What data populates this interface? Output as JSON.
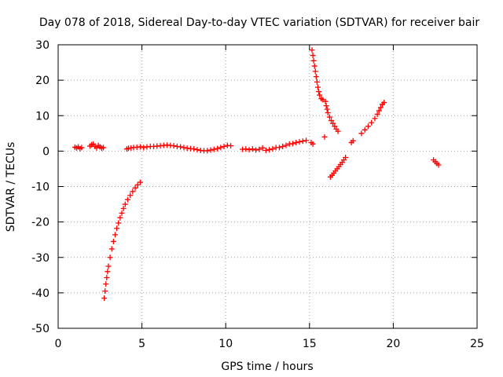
{
  "chart_data": {
    "type": "scatter",
    "title": "Day 078 of 2018, Sidereal Day-to-day VTEC variation (SDTVAR) for receiver bair",
    "xlabel": "GPS time / hours",
    "ylabel": "SDTVAR / TECUs",
    "xlim": [
      0,
      25
    ],
    "ylim": [
      -50,
      30
    ],
    "x_ticks": [
      0,
      5,
      10,
      15,
      20,
      25
    ],
    "y_ticks": [
      -50,
      -40,
      -30,
      -20,
      -10,
      0,
      10,
      20,
      30
    ],
    "grid": true,
    "marker": "+",
    "color": "#ff0000",
    "series": [
      {
        "points": [
          [
            1.0,
            1.1
          ],
          [
            1.1,
            0.9
          ],
          [
            1.2,
            1.2
          ],
          [
            1.3,
            0.7
          ],
          [
            1.4,
            1.0
          ],
          [
            1.9,
            1.4
          ],
          [
            2.0,
            1.8
          ],
          [
            2.1,
            2.0
          ],
          [
            2.2,
            1.3
          ],
          [
            2.3,
            0.9
          ],
          [
            2.4,
            1.6
          ],
          [
            2.5,
            1.2
          ],
          [
            2.6,
            0.8
          ],
          [
            2.7,
            1.0
          ],
          [
            4.1,
            0.6
          ],
          [
            4.2,
            0.8
          ],
          [
            4.35,
            0.9
          ],
          [
            4.5,
            1.0
          ],
          [
            4.7,
            1.1
          ],
          [
            4.9,
            1.2
          ],
          [
            5.1,
            1.0
          ],
          [
            5.3,
            1.2
          ],
          [
            5.5,
            1.3
          ],
          [
            5.7,
            1.3
          ],
          [
            5.9,
            1.4
          ],
          [
            6.1,
            1.5
          ],
          [
            6.3,
            1.6
          ],
          [
            6.5,
            1.7
          ],
          [
            6.7,
            1.6
          ],
          [
            6.9,
            1.5
          ],
          [
            7.1,
            1.3
          ],
          [
            7.3,
            1.2
          ],
          [
            7.5,
            1.0
          ],
          [
            7.7,
            0.8
          ],
          [
            7.9,
            0.7
          ],
          [
            8.1,
            0.6
          ],
          [
            8.3,
            0.4
          ],
          [
            8.5,
            0.2
          ],
          [
            8.7,
            0.1
          ],
          [
            8.9,
            0.1
          ],
          [
            9.1,
            0.3
          ],
          [
            9.3,
            0.5
          ],
          [
            9.5,
            0.7
          ],
          [
            9.7,
            1.0
          ],
          [
            9.9,
            1.3
          ],
          [
            10.1,
            1.6
          ],
          [
            10.3,
            1.5
          ],
          [
            11.0,
            0.5
          ],
          [
            11.2,
            0.6
          ],
          [
            11.4,
            0.4
          ],
          [
            11.6,
            0.6
          ],
          [
            11.8,
            0.3
          ],
          [
            12.0,
            0.5
          ],
          [
            12.2,
            0.9
          ],
          [
            12.4,
            0.2
          ],
          [
            12.6,
            0.4
          ],
          [
            12.8,
            0.6
          ],
          [
            13.0,
            1.0
          ],
          [
            13.2,
            1.0
          ],
          [
            13.4,
            1.3
          ],
          [
            13.6,
            1.6
          ],
          [
            13.8,
            2.0
          ],
          [
            14.0,
            2.1
          ],
          [
            14.2,
            2.4
          ],
          [
            14.4,
            2.6
          ],
          [
            14.6,
            2.8
          ],
          [
            14.8,
            3.0
          ],
          [
            15.1,
            2.4
          ],
          [
            15.2,
            2.0
          ],
          [
            2.75,
            -41.5
          ],
          [
            2.8,
            -39.5
          ],
          [
            2.85,
            -37.5
          ],
          [
            2.9,
            -35.7
          ],
          [
            2.95,
            -34.0
          ],
          [
            3.0,
            -32.5
          ],
          [
            3.1,
            -30.0
          ],
          [
            3.2,
            -27.6
          ],
          [
            3.3,
            -25.5
          ],
          [
            3.4,
            -23.6
          ],
          [
            3.5,
            -21.8
          ],
          [
            3.6,
            -20.3
          ],
          [
            3.7,
            -18.8
          ],
          [
            3.8,
            -17.5
          ],
          [
            3.9,
            -16.2
          ],
          [
            4.0,
            -15.0
          ],
          [
            4.15,
            -13.7
          ],
          [
            4.3,
            -12.5
          ],
          [
            4.45,
            -11.4
          ],
          [
            4.6,
            -10.4
          ],
          [
            4.75,
            -9.5
          ],
          [
            4.9,
            -8.8
          ],
          [
            15.15,
            28.5
          ],
          [
            15.2,
            27.0
          ],
          [
            15.25,
            25.5
          ],
          [
            15.3,
            24.0
          ],
          [
            15.35,
            22.5
          ],
          [
            15.4,
            21.0
          ],
          [
            15.45,
            19.5
          ],
          [
            15.5,
            18.0
          ],
          [
            15.55,
            16.8
          ],
          [
            15.6,
            15.8
          ],
          [
            15.7,
            14.8
          ],
          [
            15.8,
            14.5
          ],
          [
            15.95,
            14.0
          ],
          [
            16.0,
            12.8
          ],
          [
            16.05,
            11.8
          ],
          [
            16.1,
            10.8
          ],
          [
            16.2,
            9.6
          ],
          [
            16.3,
            8.6
          ],
          [
            16.4,
            7.8
          ],
          [
            16.5,
            7.0
          ],
          [
            16.6,
            6.2
          ],
          [
            16.7,
            5.6
          ],
          [
            15.9,
            4.0
          ],
          [
            16.25,
            -7.3
          ],
          [
            16.35,
            -6.8
          ],
          [
            16.45,
            -6.2
          ],
          [
            16.55,
            -5.6
          ],
          [
            16.65,
            -5.0
          ],
          [
            16.75,
            -4.4
          ],
          [
            16.85,
            -3.8
          ],
          [
            16.95,
            -3.2
          ],
          [
            17.05,
            -2.5
          ],
          [
            17.15,
            -1.8
          ],
          [
            17.5,
            2.4
          ],
          [
            17.6,
            2.9
          ],
          [
            18.1,
            5.0
          ],
          [
            18.3,
            6.0
          ],
          [
            18.5,
            7.0
          ],
          [
            18.7,
            8.0
          ],
          [
            18.9,
            9.2
          ],
          [
            19.05,
            10.4
          ],
          [
            19.15,
            11.4
          ],
          [
            19.25,
            12.3
          ],
          [
            19.35,
            13.2
          ],
          [
            19.45,
            13.7
          ],
          [
            22.4,
            -2.5
          ],
          [
            22.5,
            -3.0
          ],
          [
            22.6,
            -3.5
          ],
          [
            22.7,
            -3.9
          ]
        ]
      }
    ]
  }
}
